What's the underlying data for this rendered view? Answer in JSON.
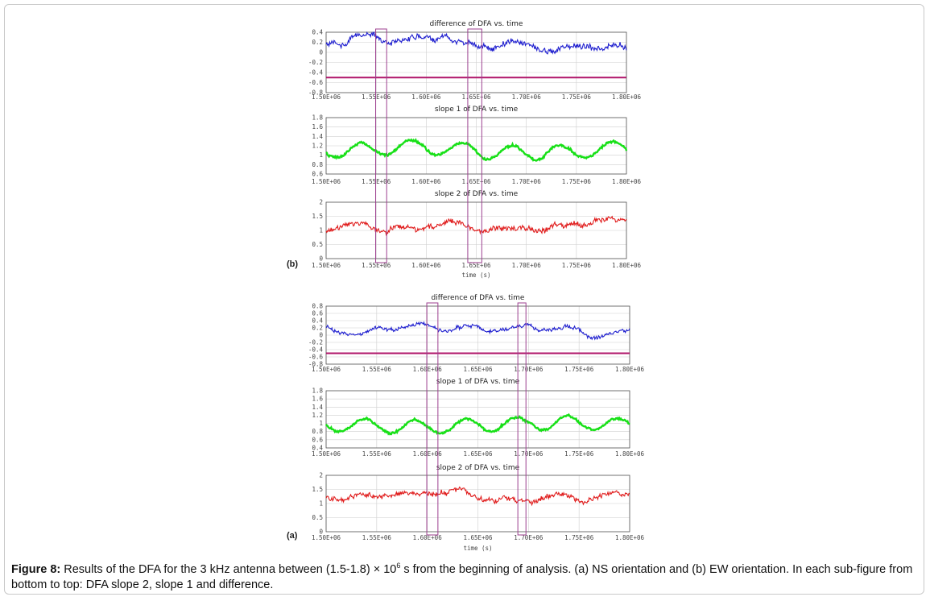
{
  "figure": {
    "caption_label": "Figure 8:",
    "caption_part1": " Results of the DFA for the 3 kHz antenna between (1.5-1.8) × 10",
    "caption_sup": "6",
    "caption_part2": " s from the beginning of analysis. (a) NS orientation and (b) EW orientation. In each sub-figure from bottom to top: DFA slope 2, slope 1 and difference."
  },
  "colors": {
    "difference": "#1f1fcf",
    "slope1": "#17e017",
    "slope2": "#e01b1b",
    "threshold": "#b0156a",
    "highlight_box": "#9c3f8f",
    "grid": "#cfcfcf",
    "axis": "#555555"
  },
  "chart_data": [
    {
      "panel": "(b)",
      "orientation": "EW",
      "x_tick_labels": [
        "1.50E+06",
        "1.55E+06",
        "1.60E+06",
        "1.65E+06",
        "1.70E+06",
        "1.75E+06",
        "1.80E+06"
      ],
      "x_label": "time (s)",
      "xlim": [
        1500000,
        1800000
      ],
      "highlight_intervals": [
        [
          1549500.0,
          1560500.0
        ],
        [
          1641500.0,
          1655500.0
        ]
      ],
      "plots": [
        {
          "type": "line",
          "title": "difference of DFA vs. time",
          "series_name": "difference",
          "ylim": [
            -0.8,
            0.4
          ],
          "y_tick_labels": [
            "0.4",
            "0.2",
            "0",
            "-0.2",
            "-0.4",
            "-0.6",
            "-0.8"
          ],
          "threshold": -0.5,
          "mean": 0.15,
          "noise": 0.09
        },
        {
          "type": "line",
          "title": "slope 1 of DFA vs. time",
          "series_name": "slope 1",
          "ylim": [
            0.6,
            1.8
          ],
          "y_tick_labels": [
            "1.8",
            "1.6",
            "1.4",
            "1.2",
            "1",
            "0.8",
            "0.6"
          ],
          "mean": 1.1,
          "noise": 0.04
        },
        {
          "type": "line",
          "title": "slope 2 of DFA vs. time",
          "series_name": "slope 2",
          "ylim": [
            0,
            2
          ],
          "y_tick_labels": [
            "2",
            "1.5",
            "1",
            "0.5",
            "0"
          ],
          "mean": 1.12,
          "noise": 0.15
        }
      ]
    },
    {
      "panel": "(a)",
      "orientation": "NS",
      "x_tick_labels": [
        "1.50E+06",
        "1.55E+06",
        "1.60E+06",
        "1.65E+06",
        "1.70E+06",
        "1.75E+06",
        "1.80E+06"
      ],
      "x_label": "time (s)",
      "xlim": [
        1500000,
        1800000
      ],
      "highlight_intervals": [
        [
          1599500.0,
          1610500.0
        ],
        [
          1689500.0,
          1697500.0
        ]
      ],
      "plots": [
        {
          "type": "line",
          "title": "difference of DFA vs. time",
          "series_name": "difference",
          "ylim": [
            -0.8,
            0.8
          ],
          "y_tick_labels": [
            "0.8",
            "0.6",
            "0.4",
            "0.2",
            "0",
            "-0.2",
            "-0.4",
            "-0.6",
            "-0.8"
          ],
          "threshold": -0.5,
          "mean": 0.15,
          "noise": 0.08
        },
        {
          "type": "line",
          "title": "slope 1 of DFA vs. time",
          "series_name": "slope 1",
          "ylim": [
            0.4,
            1.8
          ],
          "y_tick_labels": [
            "1.8",
            "1.6",
            "1.4",
            "1.2",
            "1",
            "0.8",
            "0.6",
            "0.4"
          ],
          "mean": 0.95,
          "noise": 0.04
        },
        {
          "type": "line",
          "title": "slope 2 of DFA vs. time",
          "series_name": "slope 2",
          "ylim": [
            0,
            2
          ],
          "y_tick_labels": [
            "2",
            "1.5",
            "1",
            "0.5",
            "0"
          ],
          "mean": 1.2,
          "noise": 0.14
        }
      ]
    }
  ]
}
